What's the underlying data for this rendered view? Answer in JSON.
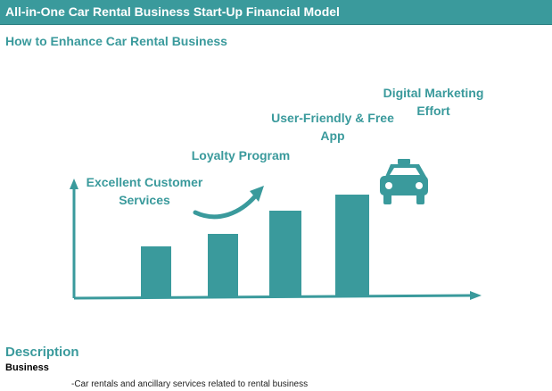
{
  "header": {
    "title": "All-in-One Car Rental Business Start-Up Financial Model"
  },
  "section": {
    "title": "How to Enhance Car Rental Business"
  },
  "steps": [
    {
      "line1": "Excellent Customer",
      "line2": "Services"
    },
    {
      "line1": "Loyalty Program",
      "line2": ""
    },
    {
      "line1": "User-Friendly & Free",
      "line2": "App"
    },
    {
      "line1": "Digital Marketing",
      "line2": "Effort"
    }
  ],
  "bar_levels": [
    1,
    1.25,
    1.7,
    2.01
  ],
  "icons": {
    "growth_arrow": "curved-arrow-icon",
    "vehicle": "taxi-icon"
  },
  "colors": {
    "accent": "#3a9a9c",
    "header_bg": "#3a9a9c"
  },
  "description": {
    "title": "Description",
    "subtitle": "Business",
    "text": "-Car rentals and ancillary services related to rental business"
  }
}
